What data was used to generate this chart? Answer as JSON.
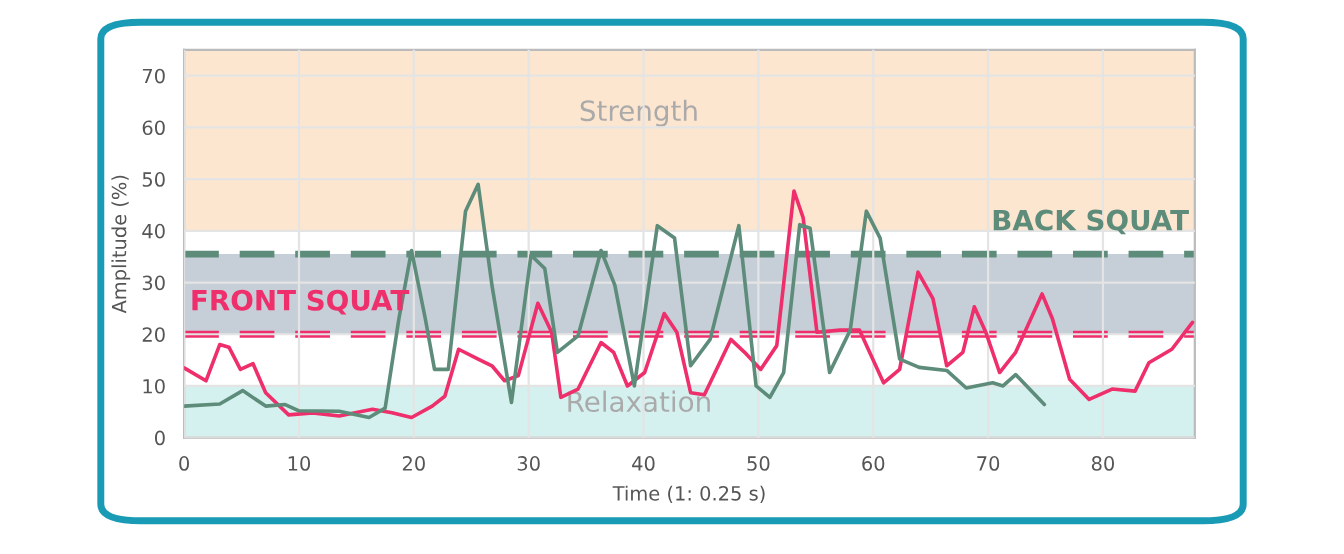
{
  "chart_data": {
    "type": "line",
    "xlabel": "Time (1: 0.25 s)",
    "ylabel": "Amplitude (%)",
    "xlim": [
      0,
      88
    ],
    "ylim": [
      0,
      75
    ],
    "xticks": [
      0,
      10,
      20,
      30,
      40,
      50,
      60,
      70,
      80
    ],
    "yticks": [
      0,
      10,
      20,
      30,
      40,
      50,
      60,
      70
    ],
    "grid": true,
    "marker": "none",
    "line_style": "solid",
    "series": [
      {
        "color": "#ee2f6b",
        "x": [
          0,
          1.9,
          3.1,
          3.9,
          4.9,
          6,
          7.1,
          9.1,
          11.2,
          13.5,
          16.4,
          18.1,
          19.8,
          21.6,
          22.7,
          23.9,
          25.6,
          26.8,
          27.9,
          29.1,
          30.8,
          32,
          32.8,
          34.3,
          36.3,
          37.4,
          38.6,
          40.1,
          41.8,
          42.9,
          44.1,
          45.3,
          47.6,
          48.8,
          50.2,
          51.6,
          53.1,
          53.9,
          55.1,
          57.1,
          58.8,
          60.9,
          62.3,
          63.9,
          65.2,
          66.4,
          67.8,
          68.8,
          69.8,
          71,
          72.4,
          74.7,
          75.6,
          77.1,
          78.8,
          80.8,
          82.8,
          84,
          86,
          87.8
        ],
        "values": [
          13.5,
          11,
          18,
          17.5,
          13.2,
          14.3,
          8.7,
          4.4,
          4.8,
          4.2,
          5.5,
          4.8,
          3.9,
          6.1,
          8,
          17.1,
          15.2,
          13.9,
          11,
          12,
          26,
          20.4,
          7.8,
          9.4,
          18.4,
          16.5,
          10,
          12.6,
          24,
          20.4,
          8.7,
          8.3,
          19,
          16.5,
          13.2,
          17.8,
          47.7,
          42.5,
          20.4,
          20.8,
          20.8,
          10.6,
          13.2,
          32,
          26.9,
          13.9,
          16.5,
          25.3,
          20.4,
          12.6,
          16.5,
          27.8,
          23,
          11.3,
          7.4,
          9.4,
          9,
          14.5,
          17.1,
          22.3
        ]
      },
      {
        "color": "#5e8c7a",
        "x": [
          0,
          3.1,
          5.1,
          7.1,
          8.8,
          10,
          13.5,
          16.1,
          17.5,
          18.7,
          19.8,
          21,
          21.8,
          23,
          24.5,
          25.6,
          26.8,
          28.5,
          30.2,
          31.4,
          32.5,
          34.3,
          36.3,
          37.5,
          39.2,
          41.2,
          42.7,
          44.1,
          45.8,
          48.3,
          49.8,
          51,
          52.2,
          53.6,
          54.5,
          56.2,
          58,
          59.4,
          60.6,
          62.3,
          64,
          66.4,
          68.1,
          70.4,
          71.3,
          72.4,
          74.9
        ],
        "values": [
          6.1,
          6.5,
          9.1,
          6.1,
          6.4,
          5.2,
          5.1,
          3.9,
          5.7,
          23,
          36.2,
          23,
          13.2,
          13.2,
          43.8,
          49,
          29.5,
          6.8,
          35.3,
          32.7,
          16.5,
          19.7,
          36.2,
          29.5,
          10,
          41,
          38.6,
          13.9,
          19,
          41,
          10,
          7.8,
          12.6,
          41.2,
          40.5,
          12.6,
          20.8,
          43.8,
          38.6,
          15.2,
          13.6,
          13,
          9.6,
          10.6,
          10,
          12.2,
          6.4
        ]
      }
    ],
    "bands": [
      {
        "axis": "y",
        "from": 40,
        "to": 75,
        "label": "Strength",
        "color": "#fde6cf"
      },
      {
        "axis": "y",
        "from": 0,
        "to": 10,
        "label": "Relaxation",
        "color": "#d5f1ef"
      },
      {
        "axis": "y",
        "from": 20,
        "to": 35.5,
        "color": "#c6ced8"
      }
    ],
    "ref_lines": [
      {
        "axis": "y",
        "value": 35.5,
        "label": "BACK SQUAT",
        "color": "#5e8c7a",
        "line_style": "dashed"
      },
      {
        "axis": "y",
        "value": 20,
        "label": "FRONT SQUAT",
        "color": "#ee2f6b",
        "line_style": "dashed"
      }
    ]
  }
}
